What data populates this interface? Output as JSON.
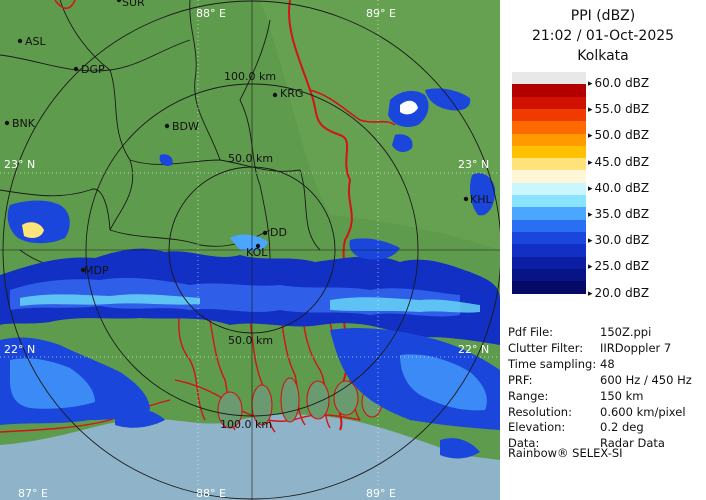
{
  "header": {
    "product": "PPI (dBZ)",
    "datetime": "21:02 / 01-Oct-2025",
    "station": "Kolkata"
  },
  "legend": {
    "levels": [
      {
        "label": "60.0 dBZ",
        "color": "#ffffff"
      },
      {
        "label": "55.0 dBZ",
        "color": "#9a0000"
      },
      {
        "label": "50.0 dBZ",
        "color": "#ff2a00"
      },
      {
        "label": "45.0 dBZ",
        "color": "#ffc800"
      },
      {
        "label": "40.0 dBZ",
        "color": "#fff8d8"
      },
      {
        "label": "35.0 dBZ",
        "color": "#6adcf6"
      },
      {
        "label": "30.0 dBZ",
        "color": "#2f5ee8"
      },
      {
        "label": "25.0 dBZ",
        "color": "#0a1db8"
      },
      {
        "label": "20.0 dBZ",
        "color": "#040a72"
      }
    ],
    "bands": [
      "#e8e8e8",
      "#b20000",
      "#d01000",
      "#f03a00",
      "#ff6a00",
      "#ff9a00",
      "#ffc000",
      "#ffe27a",
      "#fff6d8",
      "#c9f6ff",
      "#8ae4ff",
      "#4aa6ff",
      "#2a6ef2",
      "#1b46dc",
      "#1230c4",
      "#0b1ea4",
      "#071486",
      "#040a66"
    ]
  },
  "info": [
    {
      "key": "Pdf File:",
      "value": "150Z.ppi"
    },
    {
      "key": "Clutter Filter:",
      "value": "IIRDoppler 7"
    },
    {
      "key": "Time sampling:",
      "value": "48"
    },
    {
      "key": "PRF:",
      "value": "600 Hz / 450 Hz"
    },
    {
      "key": "Range:",
      "value": "150 km"
    },
    {
      "key": "Resolution:",
      "value": "0.600 km/pixel"
    },
    {
      "key": "Elevation:",
      "value": "0.2 deg"
    },
    {
      "key": "Data:",
      "value": "Radar Data"
    }
  ],
  "footer": "Rainbow® SELEX-SI",
  "map": {
    "range_rings": [
      "50.0 km",
      "100.0 km"
    ],
    "lon_labels": [
      "88° E",
      "89° E",
      "87° E",
      "88° E",
      "89° E"
    ],
    "lat_labels": [
      "23° N",
      "23° N",
      "22° N",
      "22° N"
    ],
    "places": [
      "ASL",
      "DGP",
      "BNK",
      "BDW",
      "KRG",
      "DD",
      "MDP",
      "KHL",
      "SUR",
      "KOL"
    ],
    "colors": {
      "land": "#5f9b4c",
      "sea": "#8fb3c8",
      "border": "#d21414",
      "district": "#1a1a1a"
    }
  }
}
